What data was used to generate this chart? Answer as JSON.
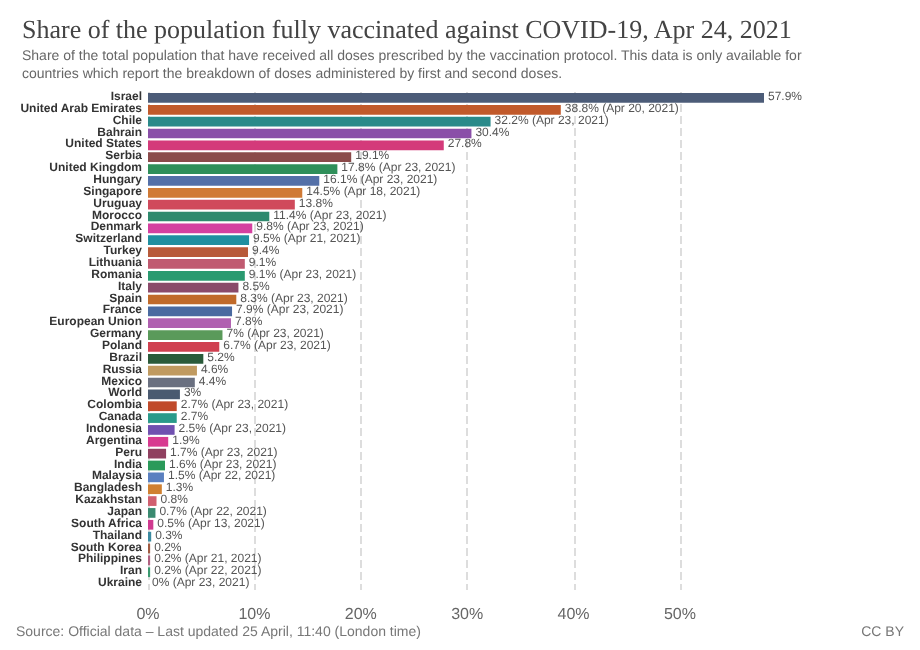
{
  "chart_data": {
    "type": "bar",
    "orientation": "horizontal",
    "title": "Share of the population fully vaccinated against COVID-19, Apr 24, 2021",
    "subtitle": "Share of the total population that have received all doses prescribed by the vaccination protocol. This data is only available for countries which report the breakdown of doses administered by first and second doses.",
    "categories": [
      "Israel",
      "United Arab Emirates",
      "Chile",
      "Bahrain",
      "United States",
      "Serbia",
      "United Kingdom",
      "Hungary",
      "Singapore",
      "Uruguay",
      "Morocco",
      "Denmark",
      "Switzerland",
      "Turkey",
      "Lithuania",
      "Romania",
      "Italy",
      "Spain",
      "France",
      "European Union",
      "Germany",
      "Poland",
      "Brazil",
      "Russia",
      "Mexico",
      "World",
      "Colombia",
      "Canada",
      "Indonesia",
      "Argentina",
      "Peru",
      "India",
      "Malaysia",
      "Bangladesh",
      "Kazakhstan",
      "Japan",
      "South Africa",
      "Thailand",
      "South Korea",
      "Philippines",
      "Iran",
      "Ukraine"
    ],
    "values": [
      57.9,
      38.8,
      32.2,
      30.4,
      27.8,
      19.1,
      17.8,
      16.1,
      14.5,
      13.8,
      11.4,
      9.8,
      9.5,
      9.4,
      9.1,
      9.1,
      8.5,
      8.3,
      7.9,
      7.8,
      7,
      6.7,
      5.2,
      4.6,
      4.4,
      3,
      2.7,
      2.7,
      2.5,
      1.9,
      1.7,
      1.6,
      1.5,
      1.3,
      0.8,
      0.7,
      0.5,
      0.3,
      0.2,
      0.2,
      0.2,
      0
    ],
    "value_labels": [
      "57.9%",
      "38.8% (Apr 20, 2021)",
      "32.2% (Apr 23, 2021)",
      "30.4%",
      "27.8%",
      "19.1%",
      "17.8% (Apr 23, 2021)",
      "16.1% (Apr 23, 2021)",
      "14.5% (Apr 18, 2021)",
      "13.8%",
      "11.4% (Apr 23, 2021)",
      "9.8% (Apr 23, 2021)",
      "9.5% (Apr 21, 2021)",
      "9.4%",
      "9.1%",
      "9.1% (Apr 23, 2021)",
      "8.5%",
      "8.3% (Apr 23, 2021)",
      "7.9% (Apr 23, 2021)",
      "7.8%",
      "7% (Apr 23, 2021)",
      "6.7% (Apr 23, 2021)",
      "5.2%",
      "4.6%",
      "4.4%",
      "3%",
      "2.7% (Apr 23, 2021)",
      "2.7%",
      "2.5% (Apr 23, 2021)",
      "1.9%",
      "1.7% (Apr 23, 2021)",
      "1.6% (Apr 23, 2021)",
      "1.5% (Apr 22, 2021)",
      "1.3%",
      "0.8%",
      "0.7% (Apr 22, 2021)",
      "0.5% (Apr 13, 2021)",
      "0.3%",
      "0.2%",
      "0.2% (Apr 21, 2021)",
      "0.2% (Apr 22, 2021)",
      "0% (Apr 23, 2021)"
    ],
    "colors": [
      "#4c5c78",
      "#c15a2b",
      "#2a8a8a",
      "#8a4fa8",
      "#d43a7a",
      "#8b4a4a",
      "#2f8f5a",
      "#5470a8",
      "#d07a35",
      "#d04a5c",
      "#2e8a6e",
      "#d440a0",
      "#1f8fa0",
      "#b85a3a",
      "#c05a70",
      "#2a9a70",
      "#8a4a6a",
      "#c06a2a",
      "#4a6aa0",
      "#b060b0",
      "#5a9a5a",
      "#d04050",
      "#2a5a3a",
      "#c09a60",
      "#6a7080",
      "#4a5a70",
      "#c04a2a",
      "#2a9a8a",
      "#7050b0",
      "#d83a90",
      "#904060",
      "#2a9a5a",
      "#5a80c0",
      "#d08030",
      "#d06070",
      "#3a8a70",
      "#d03a90",
      "#3a8aa0",
      "#a05a40",
      "#b06080",
      "#3a9a70",
      "#8a5a7a"
    ],
    "xlim": [
      0,
      57.9
    ],
    "xticks": [
      {
        "value": 0,
        "label": "0%"
      },
      {
        "value": 10,
        "label": "10%"
      },
      {
        "value": 20,
        "label": "20%"
      },
      {
        "value": 30,
        "label": "30%"
      },
      {
        "value": 40,
        "label": "40%"
      },
      {
        "value": 50,
        "label": "50%"
      }
    ],
    "grid": "x",
    "annotations": [
      "Source: Official data – Last updated 25 April, 11:40 (London time)",
      "CC BY"
    ]
  }
}
